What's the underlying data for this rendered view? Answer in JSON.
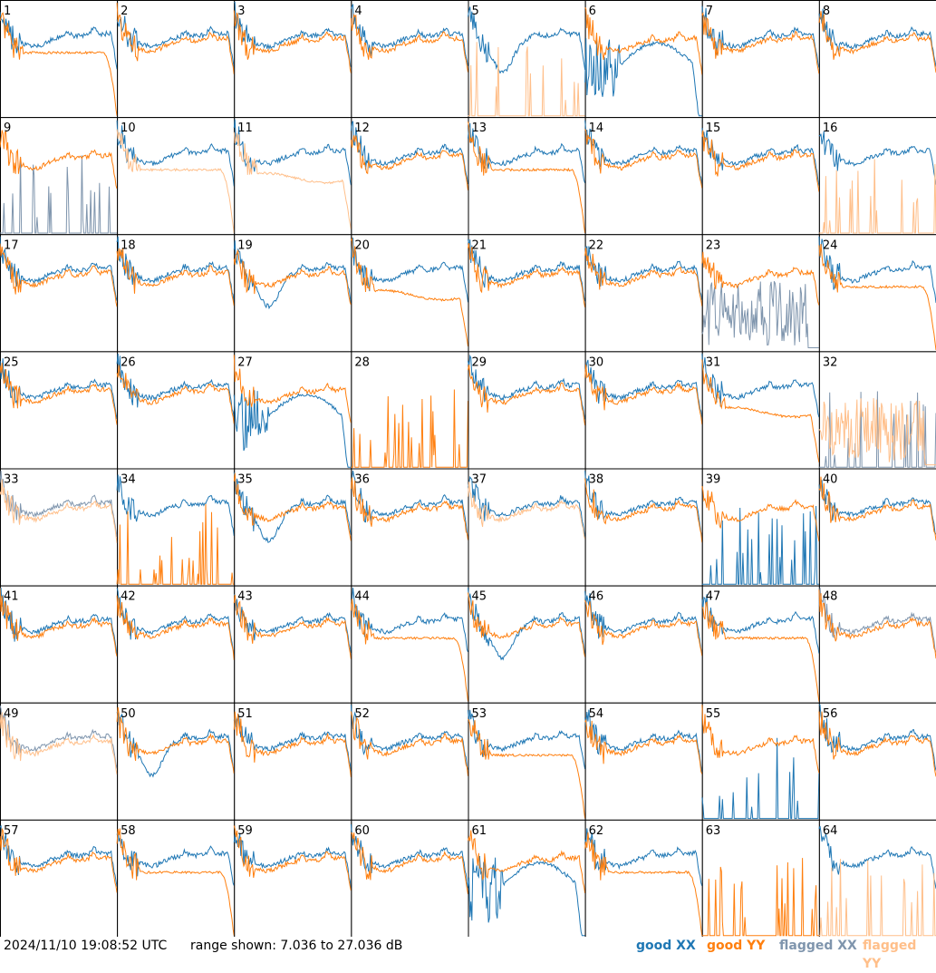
{
  "footer": {
    "timestamp": "2024/11/10 19:08:52 UTC",
    "range_text": "range shown: 7.036 to 27.036 dB"
  },
  "legend": [
    {
      "key": "good_xx",
      "label": "good XX",
      "color": "#1f77b4"
    },
    {
      "key": "good_yy",
      "label": "good YY",
      "color": "#ff7f0e"
    },
    {
      "key": "flagged_xx",
      "label": "flagged XX",
      "color": "#7f95ad"
    },
    {
      "key": "flagged_yy",
      "label": "flagged YY",
      "color": "#ffbf8a"
    }
  ],
  "chart_data": {
    "type": "line",
    "grid": {
      "rows": 8,
      "cols": 8
    },
    "ylim_db": [
      7.036,
      27.036
    ],
    "panel_labels": [
      "1",
      "2",
      "3",
      "4",
      "5",
      "6",
      "7",
      "8",
      "9",
      "10",
      "11",
      "12",
      "13",
      "14",
      "15",
      "16",
      "17",
      "18",
      "19",
      "20",
      "21",
      "22",
      "23",
      "24",
      "25",
      "26",
      "27",
      "28",
      "29",
      "30",
      "31",
      "32",
      "33",
      "34",
      "35",
      "36",
      "37",
      "38",
      "39",
      "40",
      "41",
      "42",
      "43",
      "44",
      "45",
      "46",
      "47",
      "48",
      "49",
      "50",
      "51",
      "52",
      "53",
      "54",
      "55",
      "56",
      "57",
      "58",
      "59",
      "60",
      "61",
      "62",
      "63",
      "64"
    ],
    "panels": {
      "1": {
        "xx": "good",
        "yy": "good",
        "yy_shape": "dropend"
      },
      "5": {
        "xx": "good",
        "yy": "flagged",
        "xx_shape": "dip",
        "yy_shape": "spikes"
      },
      "6": {
        "xx": "good",
        "yy": "good",
        "xx_shape": "deepdip"
      },
      "9": {
        "xx": "flagged",
        "yy": "good",
        "xx_shape": "spikes"
      },
      "10": {
        "xx": "good",
        "yy": "flagged",
        "yy_shape": "dropend"
      },
      "11": {
        "xx": "good",
        "yy": "flagged",
        "yy_shape": "lower"
      },
      "13": {
        "xx": "good",
        "yy": "good",
        "yy_shape": "dropend"
      },
      "16": {
        "xx": "good",
        "yy": "flagged",
        "yy_shape": "spikes"
      },
      "19": {
        "xx": "good",
        "yy": "good",
        "xx_shape": "dip"
      },
      "20": {
        "xx": "good",
        "yy": "good",
        "yy_shape": "lower"
      },
      "23": {
        "xx": "flagged",
        "yy": "good",
        "xx_shape": "noise"
      },
      "24": {
        "xx": "good",
        "yy": "good",
        "yy_shape": "dropend"
      },
      "27": {
        "xx": "good",
        "yy": "good",
        "xx_shape": "deepdip"
      },
      "28": {
        "xx": "none",
        "yy": "good",
        "yy_shape": "spikes"
      },
      "31": {
        "xx": "good",
        "yy": "good",
        "yy_shape": "lower"
      },
      "32": {
        "xx": "flagged",
        "yy": "flagged",
        "xx_shape": "spikes",
        "yy_shape": "noise"
      },
      "33": {
        "xx": "flagged",
        "yy": "flagged"
      },
      "34": {
        "xx": "good",
        "yy": "good",
        "yy_shape": "spikes"
      },
      "35": {
        "xx": "good",
        "yy": "good",
        "xx_shape": "dip"
      },
      "37": {
        "xx": "good",
        "yy": "flagged"
      },
      "39": {
        "xx": "good",
        "yy": "good",
        "xx_shape": "spikes"
      },
      "44": {
        "xx": "good",
        "yy": "good",
        "yy_shape": "dropend"
      },
      "45": {
        "xx": "good",
        "yy": "good",
        "xx_shape": "dip"
      },
      "47": {
        "xx": "good",
        "yy": "good",
        "yy_shape": "dropend"
      },
      "48": {
        "xx": "flagged",
        "yy": "good"
      },
      "49": {
        "xx": "flagged",
        "yy": "flagged"
      },
      "50": {
        "xx": "good",
        "yy": "good",
        "xx_shape": "dip"
      },
      "53": {
        "xx": "good",
        "yy": "good",
        "yy_shape": "dropend"
      },
      "55": {
        "xx": "good",
        "yy": "good",
        "xx_shape": "spikes"
      },
      "58": {
        "xx": "good",
        "yy": "good",
        "yy_shape": "dropend"
      },
      "61": {
        "xx": "good",
        "yy": "good",
        "xx_shape": "deepdip"
      },
      "62": {
        "xx": "good",
        "yy": "good",
        "yy_shape": "dropend"
      },
      "63": {
        "xx": "none",
        "yy": "good",
        "yy_shape": "spikes"
      },
      "64": {
        "xx": "good",
        "yy": "flagged",
        "yy_shape": "spikes"
      }
    }
  }
}
